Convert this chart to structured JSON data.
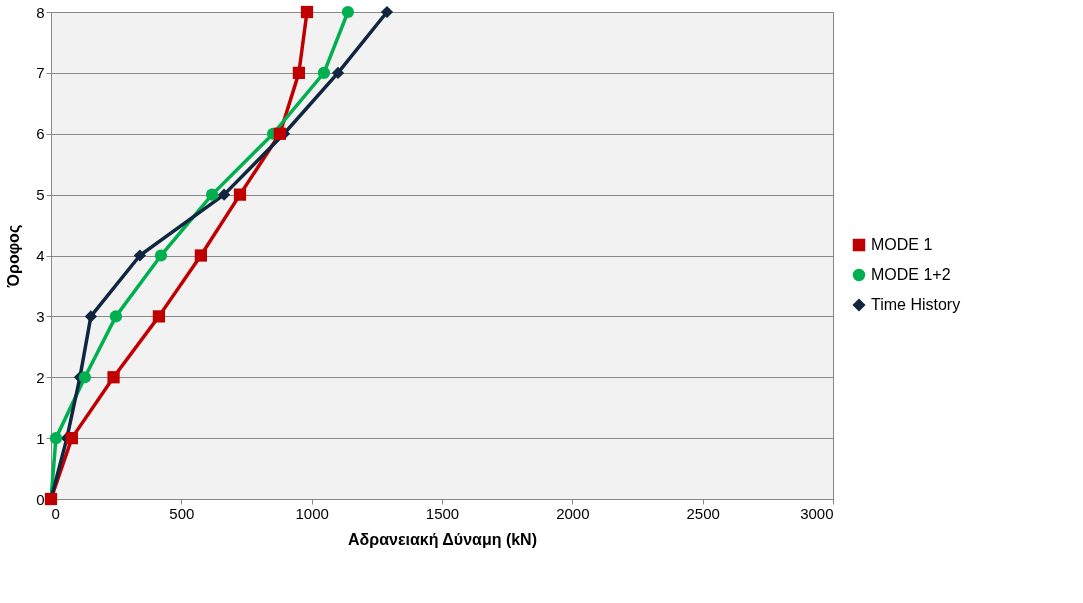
{
  "chart_data": {
    "type": "line",
    "xlabel": "Αδρανειακή Δύναμη (kN)",
    "ylabel": "Όροφος",
    "xlim": [
      0,
      3000
    ],
    "xticks": [
      0,
      500,
      1000,
      1500,
      2000,
      2500,
      3000
    ],
    "ylim": [
      0,
      8
    ],
    "yticks": [
      0,
      1,
      2,
      3,
      4,
      5,
      6,
      7,
      8
    ],
    "grid": "y",
    "legend": "right",
    "series": [
      {
        "name": "MODE 1",
        "color": "#c00000",
        "marker": "square",
        "x": [
          0,
          80,
          240,
          414,
          575,
          725,
          878,
          951,
          982
        ],
        "values": [
          0,
          1,
          2,
          3,
          4,
          5,
          6,
          7,
          8
        ]
      },
      {
        "name": "MODE 1+2",
        "color": "#00b050",
        "marker": "circle",
        "x": [
          0,
          19,
          130,
          249,
          422,
          618,
          852,
          1047,
          1139
        ],
        "values": [
          0,
          1,
          2,
          3,
          4,
          5,
          6,
          7,
          8
        ]
      },
      {
        "name": "Time History",
        "color": "#10253f",
        "marker": "diamond",
        "x": [
          0,
          61,
          111,
          153,
          341,
          664,
          894,
          1101,
          1289
        ],
        "values": [
          0,
          1,
          2,
          3,
          4,
          5,
          6,
          7,
          8
        ]
      }
    ]
  }
}
